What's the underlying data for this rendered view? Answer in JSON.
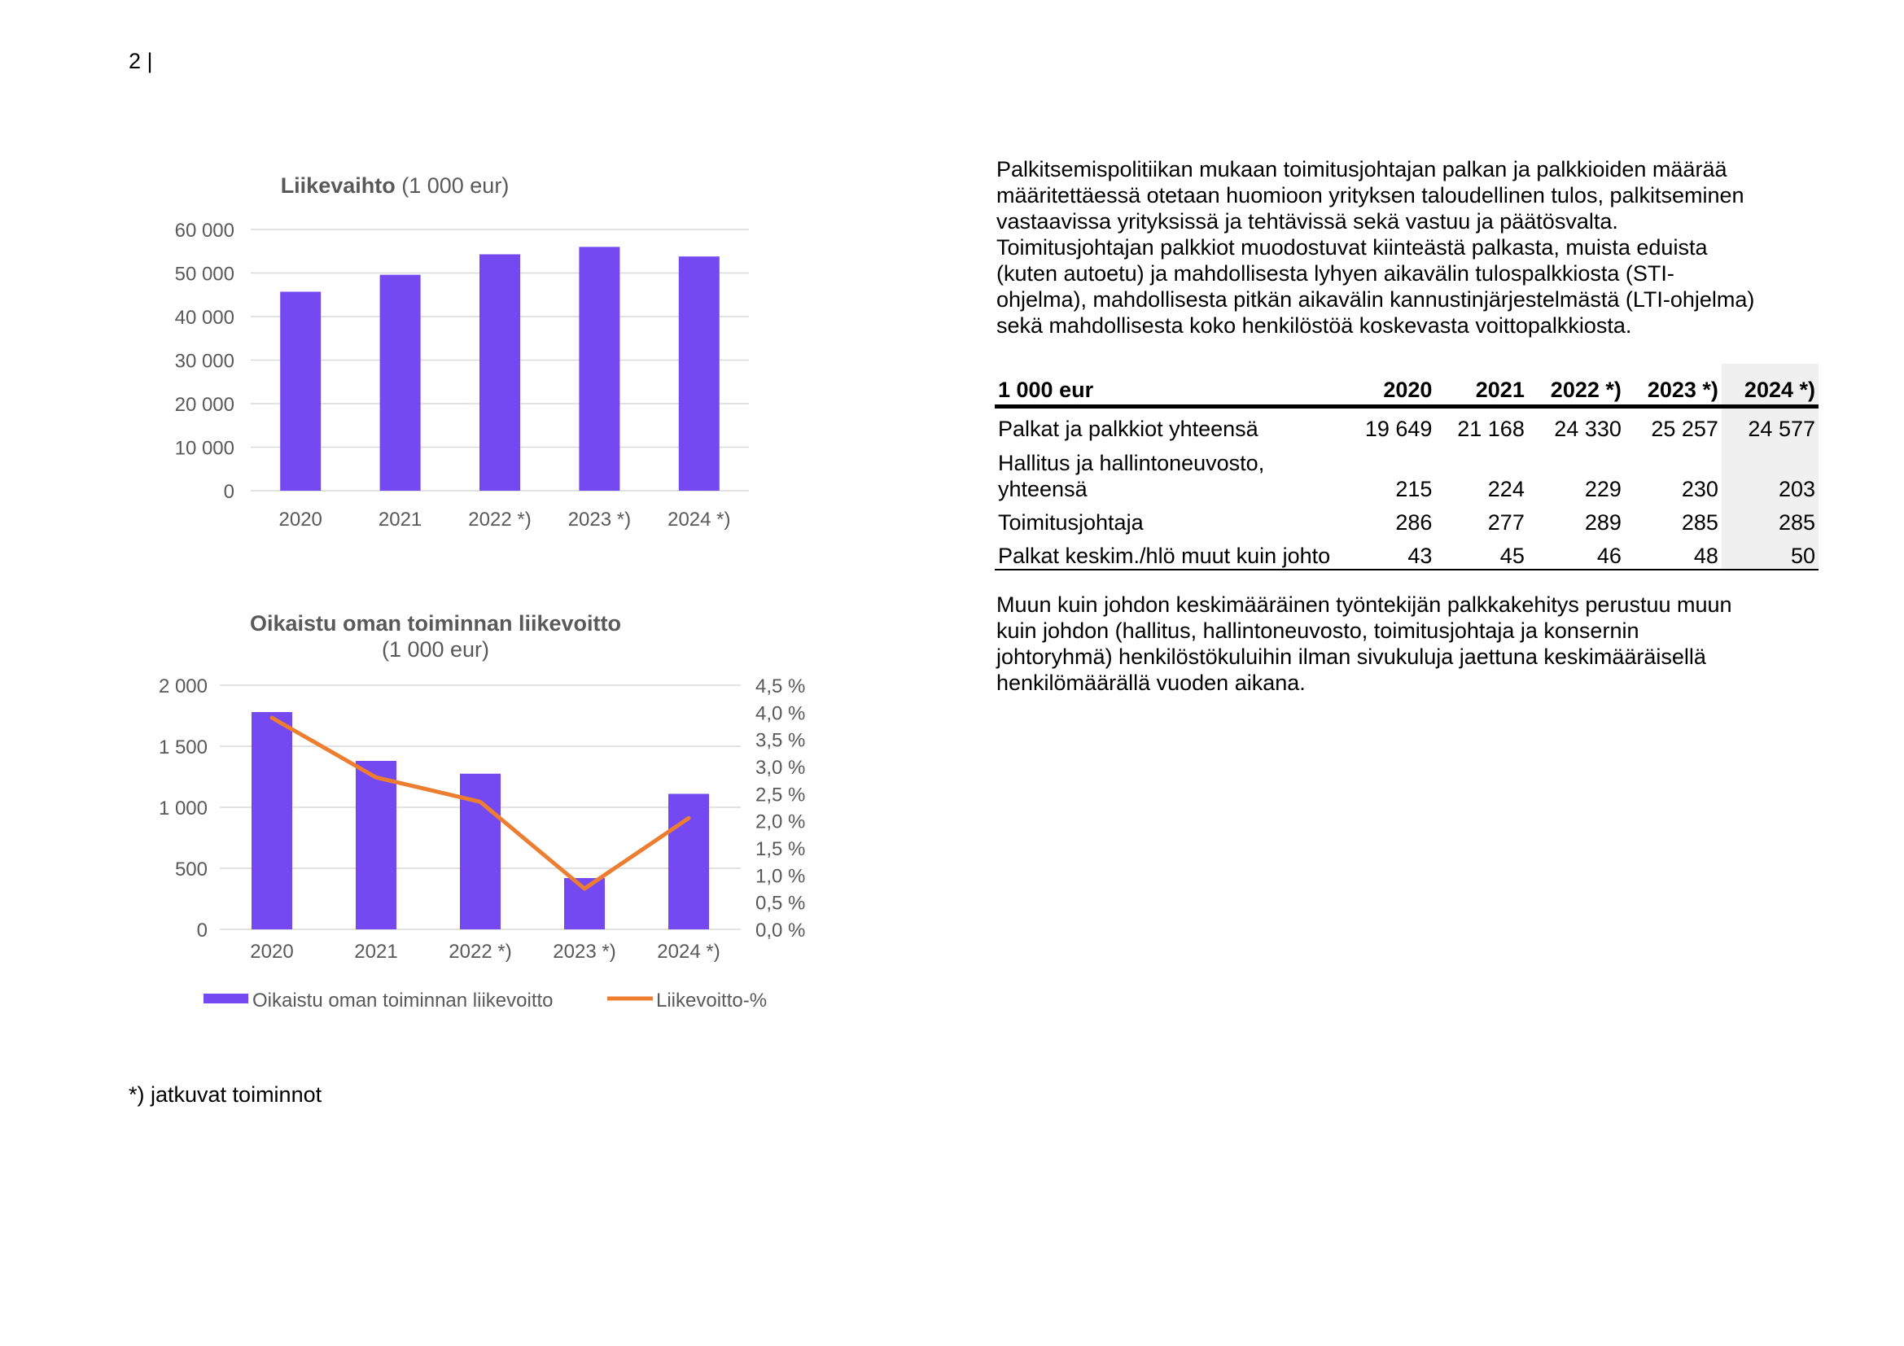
{
  "page_number": "2 |",
  "footnote": "*) jatkuvat toiminnot",
  "intro_text": "Palkitsemispolitiikan mukaan toimitusjohtajan palkan ja palkkioiden määrää\nmääritettäessä otetaan huomioon yrityksen taloudellinen tulos, palkitseminen\nvastaavissa yrityksissä ja tehtävissä sekä vastuu ja päätösvalta.\nToimitusjohtajan palkkiot muodostuvat kiinteästä palkasta, muista eduista\n(kuten autoetu) ja mahdollisesta lyhyen aikavälin tulospalkkiosta (STI-\nohjelma), mahdollisesta pitkän aikavälin kannustinjärjestelmästä (LTI-ohjelma)\nsekä mahdollisesta koko henkilöstöä koskevasta voittopalkkiosta.",
  "outro_text": "Muun kuin johdon keskimääräinen työntekijän palkkakehitys perustuu muun\nkuin johdon (hallitus, hallintoneuvosto, toimitusjohtaja ja konsernin\njohtoryhmä) henkilöstökuluihin ilman sivukuluja jaettuna keskimääräisellä\nhenkilömäärällä vuoden aikana.",
  "table": {
    "headers": [
      "1 000 eur",
      "2020",
      "2021",
      "2022 *)",
      "2023 *)",
      "2024 *)"
    ],
    "rows": [
      {
        "label": "Palkat ja palkkiot yhteensä",
        "values": [
          "19 649",
          "21 168",
          "24 330",
          "25 257",
          "24 577"
        ]
      },
      {
        "label": "Hallitus ja hallintoneuvosto,\nyhteensä",
        "values": [
          "215",
          "224",
          "229",
          "230",
          "203"
        ]
      },
      {
        "label": "Toimitusjohtaja",
        "values": [
          "286",
          "277",
          "289",
          "285",
          "285"
        ]
      },
      {
        "label": "Palkat keskim./hlö muut kuin johto",
        "values": [
          "43",
          "45",
          "46",
          "48",
          "50"
        ]
      }
    ]
  },
  "colors": {
    "bar": "#7549f2",
    "line": "#ed7d31",
    "grid": "#d9d9d9",
    "axis_text": "#595959"
  },
  "chart_data": [
    {
      "type": "bar",
      "title_bold": "Liikevaihto",
      "title_rest": " (1 000 eur)",
      "categories": [
        "2020",
        "2021",
        "2022 *)",
        "2023 *)",
        "2024 *)"
      ],
      "values": [
        45700,
        49600,
        54300,
        56000,
        53800
      ],
      "ylim": [
        0,
        60000
      ],
      "yticks": [
        "0",
        "10 000",
        "20 000",
        "30 000",
        "40 000",
        "50 000",
        "60 000"
      ],
      "grid": true
    },
    {
      "type": "bar+line",
      "title_line1": "Oikaistu oman toiminnan liikevoitto",
      "title_line2": "(1 000 eur)",
      "categories": [
        "2020",
        "2021",
        "2022 *)",
        "2023 *)",
        "2024 *)"
      ],
      "series": [
        {
          "name": "Oikaistu oman toiminnan liikevoitto",
          "type": "bar",
          "axis": "left",
          "values": [
            1780,
            1380,
            1275,
            420,
            1110
          ]
        },
        {
          "name": "Liikevoitto-%",
          "type": "line",
          "axis": "right",
          "values": [
            3.9,
            2.8,
            2.35,
            0.75,
            2.05
          ]
        }
      ],
      "ylim_left": [
        0,
        2000
      ],
      "yticks_left": [
        "0",
        "500",
        "1 000",
        "1 500",
        "2 000"
      ],
      "ylim_right": [
        0,
        4.5
      ],
      "yticks_right": [
        "0,0 %",
        "0,5 %",
        "1,0 %",
        "1,5 %",
        "2,0 %",
        "2,5 %",
        "3,0 %",
        "3,5 %",
        "4,0 %",
        "4,5 %"
      ],
      "legend_position": "bottom",
      "grid": true
    }
  ]
}
